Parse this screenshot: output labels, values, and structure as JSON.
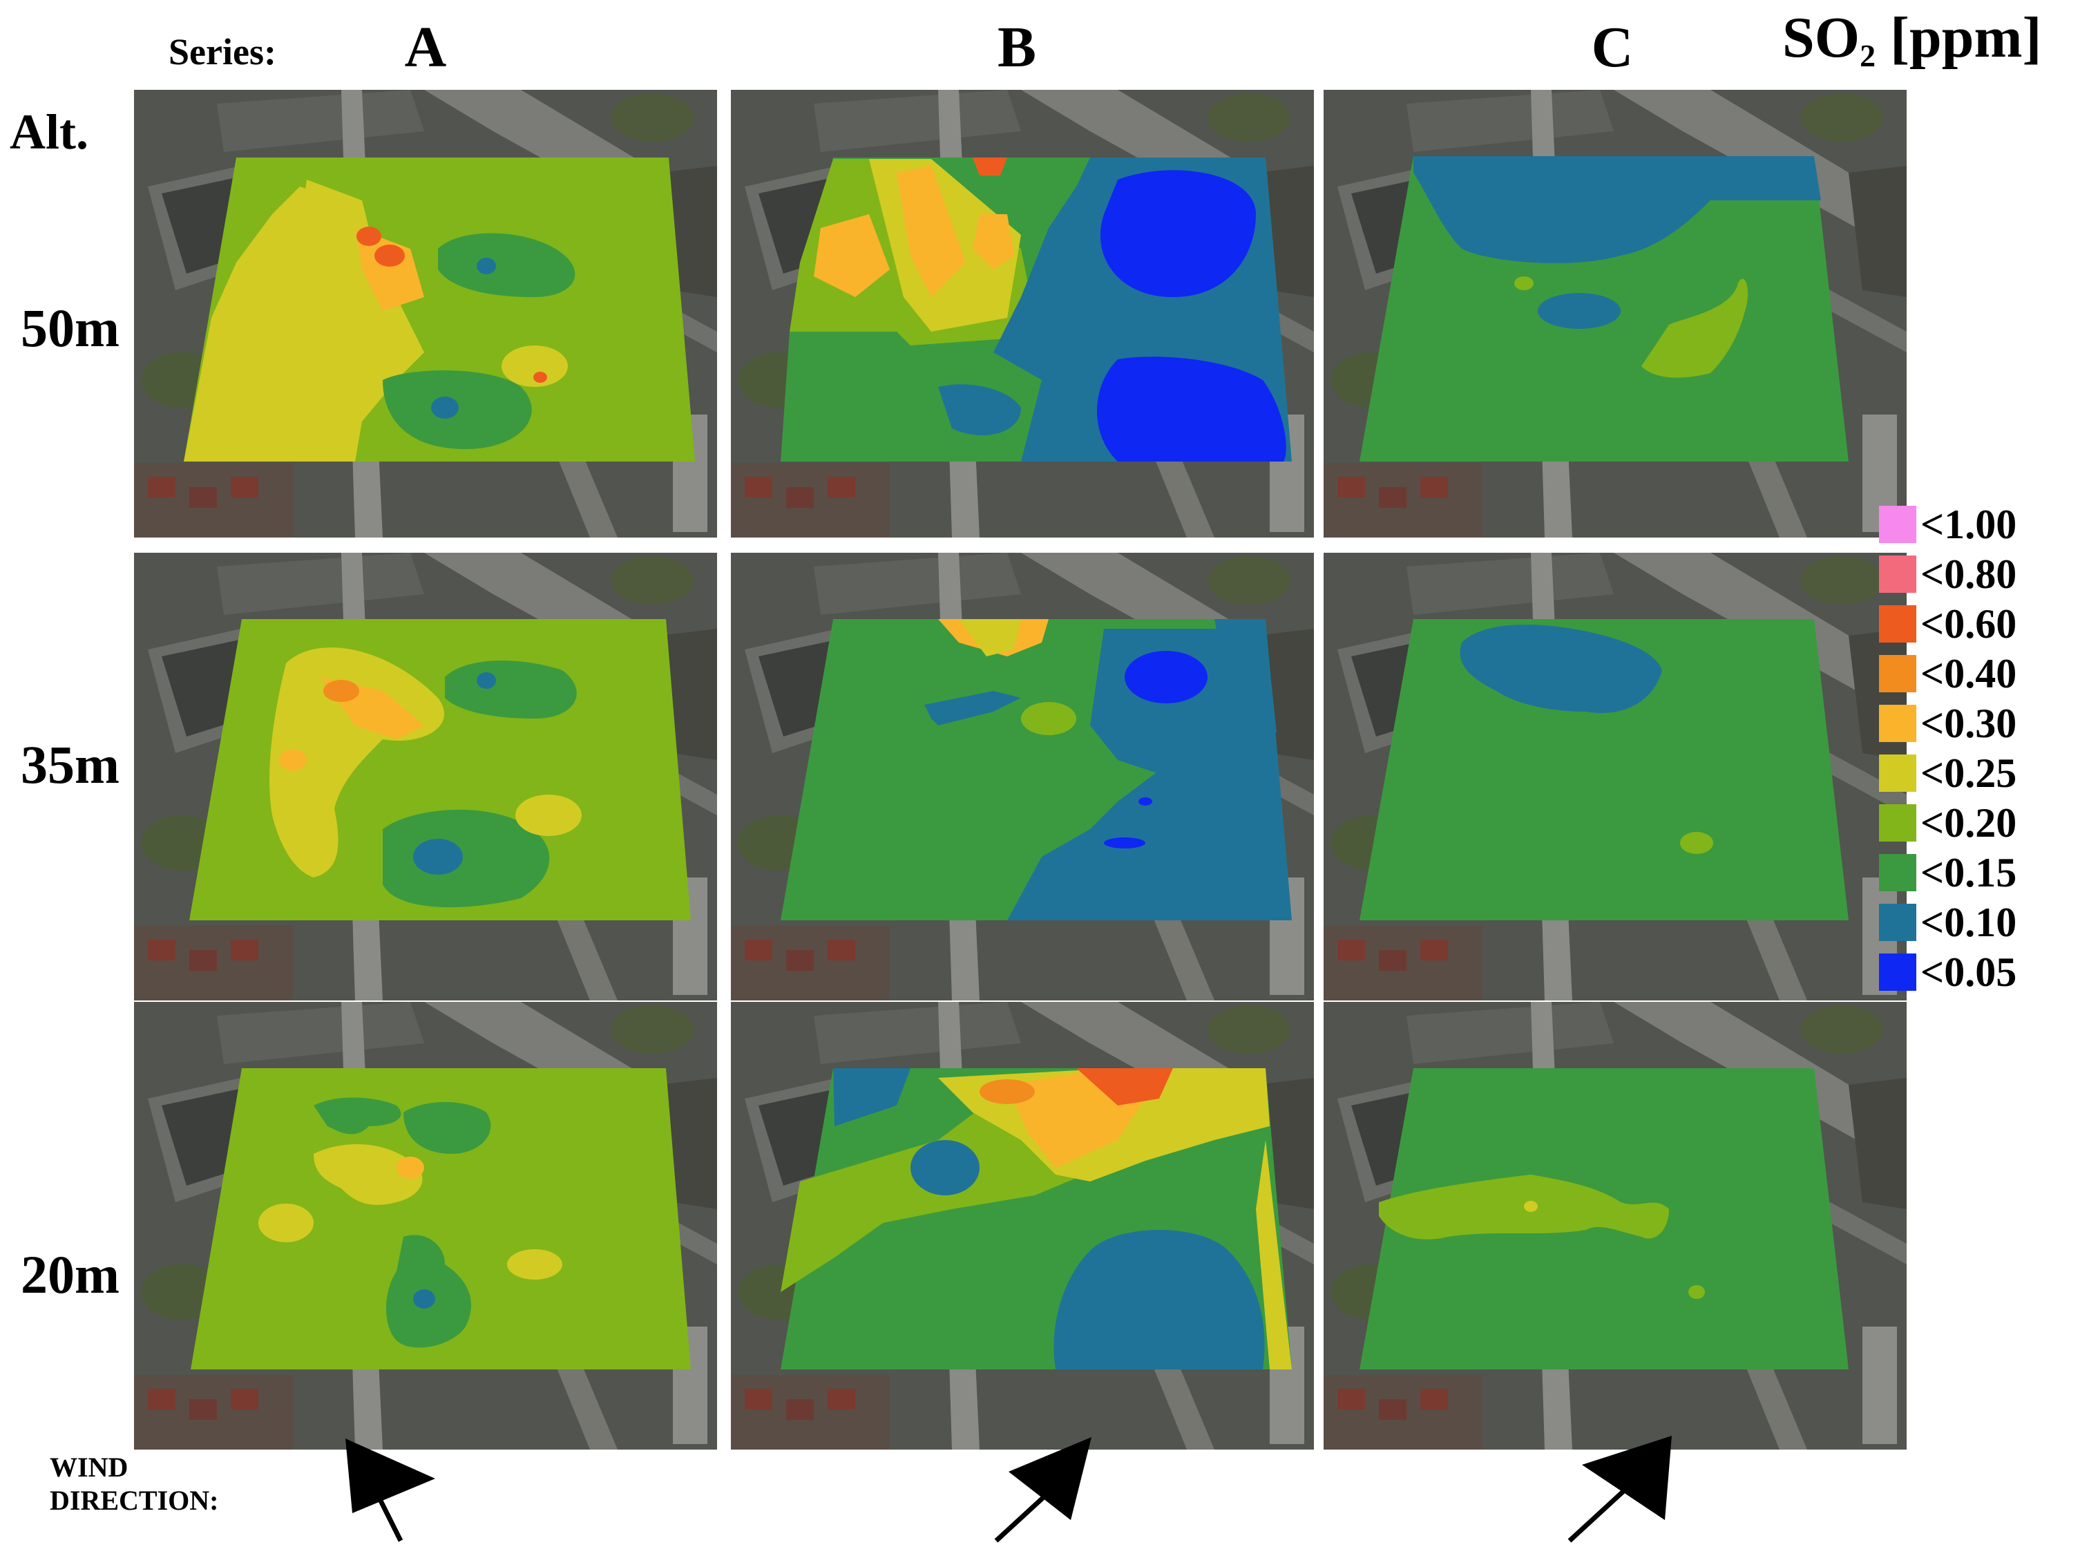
{
  "header": {
    "series_label": "Series:",
    "series": [
      "A",
      "B",
      "C"
    ],
    "unit_main": "SO",
    "unit_sub": "2",
    "unit_rest": " [ppm]",
    "alt_label": "Alt."
  },
  "altitudes": [
    "50m",
    "35m",
    "20m"
  ],
  "legend": [
    {
      "label": "<1.00",
      "color": "#f589ec"
    },
    {
      "label": "<0.80",
      "color": "#f46a7d"
    },
    {
      "label": "<0.60",
      "color": "#ee5b1f"
    },
    {
      "label": "<0.40",
      "color": "#f28c1f"
    },
    {
      "label": "<0.30",
      "color": "#f9b42c"
    },
    {
      "label": "<0.25",
      "color": "#d2cb24"
    },
    {
      "label": "<0.20",
      "color": "#82b519"
    },
    {
      "label": "<0.15",
      "color": "#3b9a3f"
    },
    {
      "label": "<0.10",
      "color": "#1f7399"
    },
    {
      "label": "<0.05",
      "color": "#0f27f3"
    }
  ],
  "wind": {
    "label_line1": "WIND",
    "label_line2": "DIRECTION:"
  },
  "map_data": {
    "A-50m": {
      "base": "<0.20",
      "features": [
        "<0.25",
        "<0.30",
        "<0.40",
        "<0.15",
        "<0.10"
      ]
    },
    "A-35m": {
      "base": "<0.20",
      "features": [
        "<0.25",
        "<0.30",
        "<0.40",
        "<0.15",
        "<0.10"
      ]
    },
    "A-20m": {
      "base": "<0.20",
      "features": [
        "<0.25",
        "<0.30",
        "<0.15",
        "<0.10"
      ]
    },
    "B-50m": {
      "base": "<0.15",
      "features": [
        "<0.20",
        "<0.25",
        "<0.30",
        "<0.40",
        "<0.60",
        "<0.10",
        "<0.05"
      ]
    },
    "B-35m": {
      "base": "<0.15",
      "features": [
        "<0.20",
        "<0.25",
        "<0.30",
        "<0.10",
        "<0.05"
      ]
    },
    "B-20m": {
      "base": "<0.15",
      "features": [
        "<0.20",
        "<0.25",
        "<0.30",
        "<0.40",
        "<0.60",
        "<0.10"
      ]
    },
    "C-50m": {
      "base": "<0.15",
      "features": [
        "<0.10",
        "<0.20"
      ]
    },
    "C-35m": {
      "base": "<0.15",
      "features": [
        "<0.10",
        "<0.20"
      ]
    },
    "C-20m": {
      "base": "<0.15",
      "features": [
        "<0.20",
        "<0.25"
      ]
    }
  }
}
